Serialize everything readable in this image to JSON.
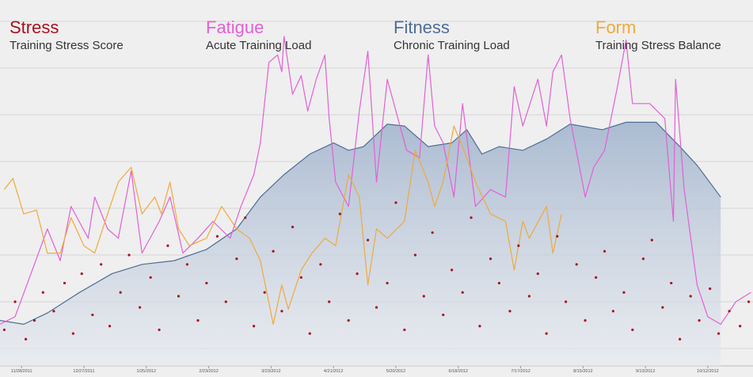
{
  "chart_data": {
    "type": "line",
    "xlim": [
      -10,
      340
    ],
    "ylim": [
      -9.3,
      186.4
    ],
    "yticks": [
      0,
      25,
      50,
      75,
      100,
      125,
      150,
      175
    ],
    "grid": true,
    "xticks": [
      {
        "value": 0,
        "label": "11/28/2011"
      },
      {
        "value": 29,
        "label": "12/27/2011"
      },
      {
        "value": 58,
        "label": "1/25/2012"
      },
      {
        "value": 87,
        "label": "2/23/2012"
      },
      {
        "value": 116,
        "label": "3/23/2012"
      },
      {
        "value": 145,
        "label": "4/21/2012"
      },
      {
        "value": 174,
        "label": "5/20/2012"
      },
      {
        "value": 203,
        "label": "6/18/2012"
      },
      {
        "value": 232,
        "label": "7/17/2012"
      },
      {
        "value": 261,
        "label": "8/15/2012"
      },
      {
        "value": 290,
        "label": "9/13/2012"
      },
      {
        "value": 319,
        "label": "10/12/2012"
      }
    ],
    "series": [
      {
        "name": "Stress",
        "subtitle": "Training Stress Score",
        "type": "scatter",
        "color": "#a8101e",
        "x": [
          -8,
          -3,
          2,
          6,
          10,
          15,
          20,
          24,
          28,
          33,
          37,
          41,
          46,
          50,
          55,
          60,
          64,
          68,
          73,
          77,
          82,
          86,
          91,
          95,
          100,
          104,
          108,
          113,
          117,
          121,
          126,
          130,
          134,
          139,
          143,
          148,
          152,
          156,
          161,
          165,
          170,
          174,
          178,
          183,
          187,
          191,
          196,
          200,
          205,
          209,
          213,
          218,
          222,
          227,
          231,
          236,
          240,
          244,
          249,
          253,
          258,
          262,
          267,
          271,
          275,
          280,
          284,
          289,
          293,
          298,
          302,
          306,
          311,
          315,
          320,
          324,
          329,
          334,
          338
        ],
        "values": [
          10,
          25,
          5,
          15,
          30,
          20,
          35,
          8,
          40,
          18,
          45,
          12,
          30,
          50,
          22,
          38,
          10,
          55,
          28,
          45,
          15,
          35,
          60,
          25,
          48,
          70,
          12,
          30,
          52,
          20,
          65,
          38,
          8,
          45,
          25,
          72,
          15,
          40,
          58,
          22,
          35,
          78,
          10,
          50,
          28,
          62,
          18,
          42,
          30,
          70,
          12,
          48,
          35,
          20,
          55,
          28,
          40,
          8,
          60,
          25,
          45,
          15,
          38,
          52,
          20,
          30,
          10,
          48,
          58,
          22,
          35,
          5,
          28,
          15,
          32,
          8,
          20,
          12,
          25
        ]
      },
      {
        "name": "Fatigue",
        "subtitle": "Acute Training Load",
        "type": "line",
        "color": "#e35fd6",
        "x": [
          -10,
          -3,
          5,
          12,
          18,
          23,
          31,
          34,
          40,
          45,
          51,
          56,
          64,
          69,
          75,
          82,
          89,
          97,
          102,
          108,
          111,
          115,
          119,
          121,
          122,
          126,
          130,
          133,
          137,
          141,
          143,
          146,
          152,
          157,
          161,
          165,
          170,
          174,
          179,
          185,
          189,
          192,
          196,
          201,
          205,
          211,
          218,
          225,
          229,
          233,
          240,
          244,
          247,
          251,
          255,
          262,
          266,
          271,
          277,
          281,
          284,
          292,
          299,
          303,
          304,
          308,
          314,
          319,
          325,
          332,
          339
        ],
        "values": [
          13,
          17,
          42,
          64,
          47,
          76,
          59,
          81,
          64,
          59,
          95,
          51,
          68,
          81,
          51,
          59,
          68,
          59,
          76,
          93,
          110,
          153,
          157,
          148,
          167,
          136,
          146,
          127,
          144,
          157,
          123,
          89,
          76,
          127,
          159,
          89,
          144,
          127,
          106,
          102,
          157,
          119,
          110,
          81,
          131,
          76,
          85,
          81,
          140,
          119,
          144,
          119,
          148,
          157,
          123,
          81,
          97,
          106,
          140,
          165,
          131,
          131,
          123,
          68,
          144,
          85,
          34,
          17,
          13,
          25,
          30
        ]
      },
      {
        "name": "Fitness",
        "subtitle": "Chronic Training Load",
        "type": "area",
        "color": "#4f6d96",
        "x": [
          -10,
          1,
          12,
          27,
          42,
          56,
          71,
          86,
          100,
          111,
          122,
          134,
          145,
          152,
          159,
          170,
          178,
          189,
          200,
          207,
          214,
          222,
          233,
          244,
          255,
          270,
          281,
          295,
          306,
          314,
          325
        ],
        "values": [
          15,
          13,
          19,
          30,
          40,
          45,
          47,
          53,
          64,
          81,
          93,
          104,
          110,
          106,
          108,
          120,
          119,
          108,
          110,
          117,
          104,
          108,
          106,
          112,
          120,
          117,
          121,
          121,
          108,
          98,
          81
        ]
      },
      {
        "name": "Form",
        "subtitle": "Training Stress Balance",
        "type": "line",
        "color": "#f0a93a",
        "x": [
          -8,
          -4,
          1,
          7,
          12,
          18,
          23,
          29,
          34,
          40,
          45,
          51,
          56,
          62,
          65,
          69,
          73,
          78,
          86,
          93,
          100,
          106,
          111,
          117,
          121,
          124,
          130,
          135,
          141,
          146,
          152,
          157,
          161,
          165,
          170,
          178,
          183,
          189,
          192,
          196,
          201,
          207,
          211,
          218,
          225,
          229,
          233,
          236,
          244,
          247,
          251
        ],
        "values": [
          85,
          91,
          72,
          74,
          51,
          51,
          70,
          55,
          51,
          72,
          89,
          97,
          72,
          81,
          72,
          89,
          64,
          55,
          59,
          76,
          64,
          59,
          47,
          13,
          34,
          21,
          42,
          51,
          59,
          55,
          93,
          81,
          34,
          64,
          59,
          68,
          106,
          89,
          76,
          89,
          119,
          102,
          89,
          72,
          68,
          42,
          68,
          59,
          76,
          51,
          72
        ]
      }
    ]
  }
}
